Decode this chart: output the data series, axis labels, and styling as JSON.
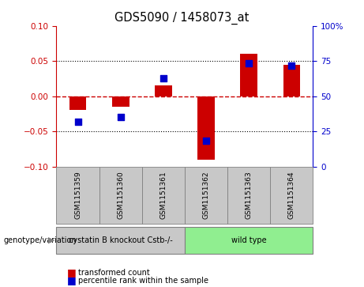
{
  "title": "GDS5090 / 1458073_at",
  "samples": [
    "GSM1151359",
    "GSM1151360",
    "GSM1151361",
    "GSM1151362",
    "GSM1151363",
    "GSM1151364"
  ],
  "red_bars": [
    -0.02,
    -0.015,
    0.015,
    -0.09,
    0.06,
    0.045
  ],
  "blue_dots": [
    -0.036,
    -0.03,
    0.025,
    -0.063,
    0.047,
    0.043
  ],
  "ylim_left": [
    -0.1,
    0.1
  ],
  "ylim_right": [
    0,
    100
  ],
  "left_ticks": [
    -0.1,
    -0.05,
    0,
    0.05,
    0.1
  ],
  "right_ticks": [
    0,
    25,
    50,
    75,
    100
  ],
  "right_tick_labels": [
    "0",
    "25",
    "50",
    "75",
    "100%"
  ],
  "groups": [
    {
      "label": "cystatin B knockout Cstb-/-",
      "indices": [
        0,
        1,
        2
      ],
      "color": "#90ee90"
    },
    {
      "label": "wild type",
      "indices": [
        3,
        4,
        5
      ],
      "color": "#90ee90"
    }
  ],
  "group_bg": [
    "#d3d3d3",
    "#90ee90"
  ],
  "bar_color": "#cc0000",
  "dot_color": "#0000cc",
  "zero_line_color": "#cc0000",
  "background_plot": "#ffffff",
  "background_label": "#c8c8c8",
  "genotype_label": "genotype/variation"
}
